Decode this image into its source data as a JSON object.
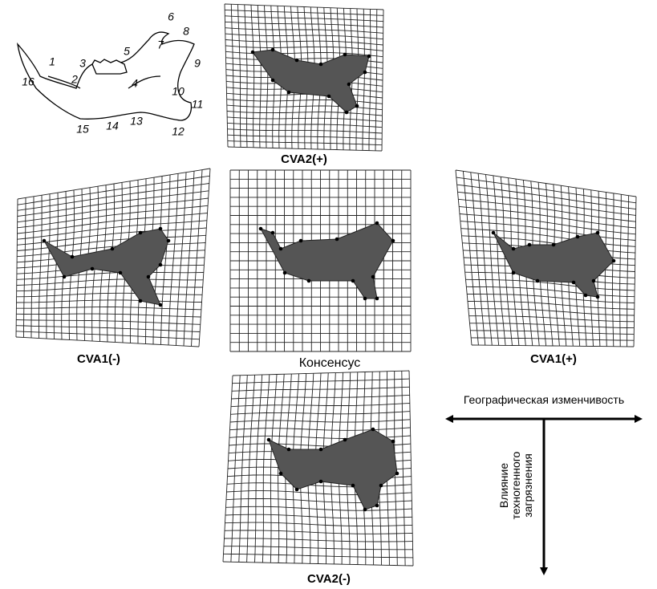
{
  "landmarks": [
    "1",
    "2",
    "3",
    "4",
    "5",
    "6",
    "7",
    "8",
    "9",
    "10",
    "11",
    "12",
    "13",
    "14",
    "15",
    "16"
  ],
  "panels": {
    "cva2_plus": "CVA2(+)",
    "cva1_minus": "CVA1(-)",
    "consensus": "Консенсус",
    "cva1_plus": "CVA1(+)",
    "cva2_minus": "CVA2(-)"
  },
  "axes": {
    "horizontal": "Географическая изменчивость",
    "vertical": [
      "Влияние",
      "техногенного",
      "загрязнения"
    ]
  }
}
